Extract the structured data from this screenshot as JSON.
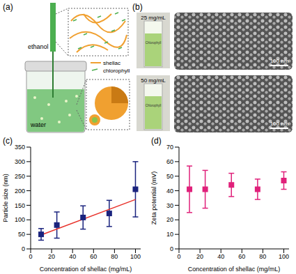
{
  "panel_a": {
    "label": "(a)",
    "needle": "ethanol",
    "legend": [
      "shellac",
      "chlorophyll"
    ],
    "vial": "water"
  },
  "panel_b": {
    "label": "(b)",
    "samples": [
      {
        "concentration": "25 mg/mL",
        "cuvette_text": "Chlorophyll",
        "scale_bar": "100 nm"
      },
      {
        "concentration": "50 mg/mL",
        "cuvette_text": "Chlorophyll",
        "scale_bar": "100 nm"
      }
    ]
  },
  "chart_data": [
    {
      "title": "(c)",
      "type": "scatter",
      "xlabel": "Concentration of shellac (mg/mL)",
      "ylabel": "Particle size (nm)",
      "x": [
        10,
        25,
        50,
        75,
        100
      ],
      "values": [
        50,
        82,
        108,
        122,
        205
      ],
      "errors": [
        20,
        45,
        40,
        45,
        95
      ],
      "color": "#1a237e",
      "marker": "square",
      "xlim": [
        0,
        105
      ],
      "xticks": [
        0,
        20,
        40,
        60,
        80,
        100
      ],
      "ylim": [
        0,
        350
      ],
      "yticks": [
        0,
        50,
        100,
        150,
        200,
        250,
        300,
        350
      ],
      "grid": false,
      "fit": {
        "x": [
          10,
          100
        ],
        "values": [
          48,
          170
        ],
        "color": "#e8322b"
      }
    },
    {
      "title": "(d)",
      "type": "scatter",
      "xlabel": "Concentration of shellac (mg/mL)",
      "ylabel": "Zeta potential (mV)",
      "x": [
        10,
        25,
        50,
        75,
        100
      ],
      "values": [
        41,
        41,
        44,
        41,
        47
      ],
      "errors": [
        16,
        13,
        8,
        7,
        6
      ],
      "color": "#e0207a",
      "marker": "square",
      "xlim": [
        0,
        105
      ],
      "xticks": [
        0,
        20,
        40,
        60,
        80,
        100
      ],
      "ylim": [
        0,
        70
      ],
      "yticks": [
        0,
        10,
        20,
        30,
        40,
        50,
        60,
        70
      ],
      "grid": false
    }
  ]
}
